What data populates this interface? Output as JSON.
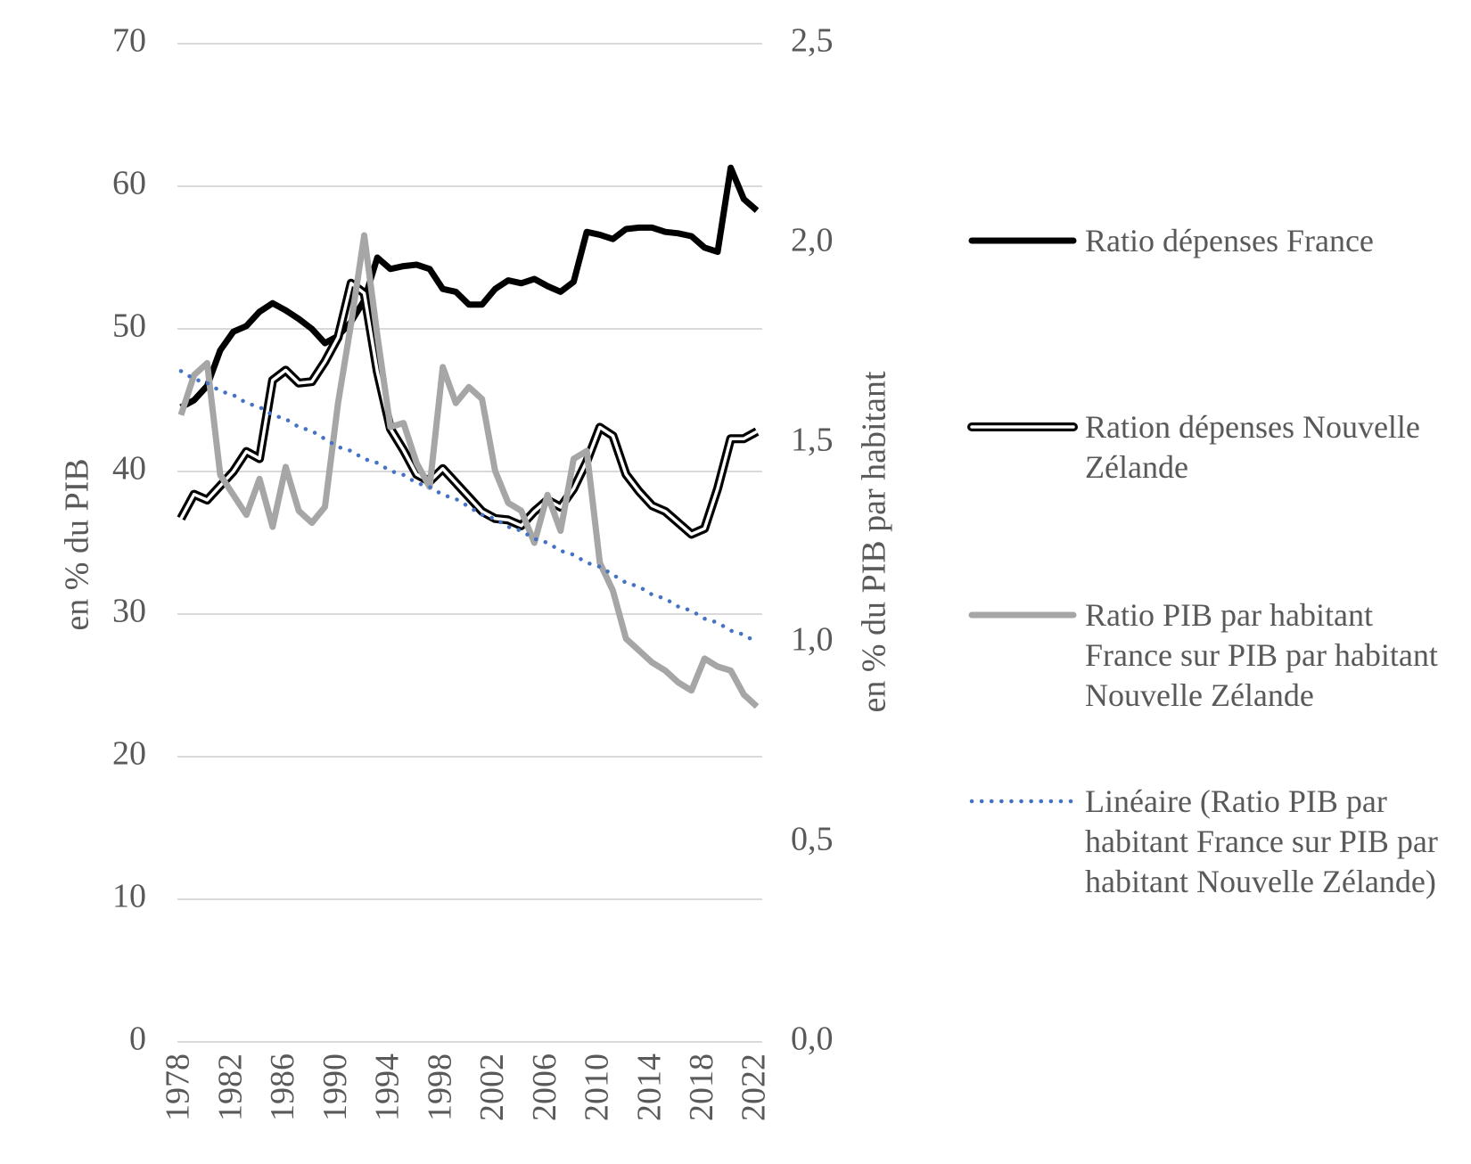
{
  "chart_data": {
    "type": "line",
    "y_label": "en % du PIB",
    "y2_label": "en % du PIB par habitant",
    "categories": [
      "1978",
      null,
      null,
      null,
      "1982",
      null,
      null,
      null,
      "1986",
      null,
      null,
      null,
      "1990",
      null,
      null,
      null,
      "1994",
      null,
      null,
      null,
      "1998",
      null,
      null,
      null,
      "2002",
      null,
      null,
      null,
      "2006",
      null,
      null,
      null,
      "2010",
      null,
      null,
      null,
      "2014",
      null,
      null,
      null,
      "2018",
      null,
      null,
      null,
      "2022"
    ],
    "ylim": [
      0,
      70
    ],
    "yticks": [
      0,
      10,
      20,
      30,
      40,
      50,
      60,
      70
    ],
    "y2lim": [
      0,
      2.5
    ],
    "y2ticks": [
      {
        "value": 0,
        "label": "0,0"
      },
      {
        "value": 0.5,
        "label": "0,5"
      },
      {
        "value": 1,
        "label": "1,0"
      },
      {
        "value": 1.5,
        "label": "1,5"
      },
      {
        "value": 2,
        "label": "2,0"
      },
      {
        "value": 2.5,
        "label": "2,5"
      }
    ],
    "grid": true,
    "legend": "right",
    "series": [
      {
        "name": "Ratio dépenses France",
        "color": "#000000",
        "line_style": "solid",
        "values": [
          44.5,
          45,
          46,
          48.5,
          49.8,
          50.2,
          51.2,
          51.8,
          51.3,
          50.7,
          50,
          49,
          49.5,
          50.5,
          52,
          55,
          54.2,
          54.4,
          54.5,
          54.2,
          52.8,
          52.6,
          51.7,
          51.7,
          52.8,
          53.4,
          53.2,
          53.5,
          53,
          52.6,
          53.3,
          56.8,
          56.6,
          56.3,
          57,
          57.1,
          57.1,
          56.8,
          56.7,
          56.5,
          55.7,
          55.4,
          61.3,
          59.1,
          58.3
        ]
      },
      {
        "name": "Ration dépenses Nouvelle Zélande",
        "color": "#000000",
        "line_style": "double",
        "values": [
          36.7,
          38.4,
          38,
          39,
          40,
          41.4,
          40.9,
          46.4,
          47.1,
          46.2,
          46.3,
          47.7,
          49.4,
          53.2,
          52.5,
          47,
          43,
          41.5,
          39.8,
          39.3,
          40.2,
          39.2,
          38.2,
          37.2,
          36.7,
          36.6,
          36.2,
          37.2,
          38,
          37.5,
          38.8,
          40.7,
          43.1,
          42.5,
          39.8,
          38.6,
          37.6,
          37.2,
          36.4,
          35.6,
          36,
          38.8,
          42.3,
          42.3,
          42.8
        ]
      },
      {
        "name": "Ratio PIB par habitant France sur PIB par habitant Nouvelle Zélande",
        "color": "#a6a6a6",
        "line_style": "solid",
        "axis": "y2",
        "values": [
          1.57,
          1.67,
          1.7,
          1.42,
          1.37,
          1.32,
          1.41,
          1.29,
          1.44,
          1.33,
          1.3,
          1.34,
          1.6,
          1.8,
          2.02,
          1.77,
          1.54,
          1.55,
          1.45,
          1.39,
          1.69,
          1.6,
          1.64,
          1.61,
          1.43,
          1.35,
          1.33,
          1.25,
          1.37,
          1.28,
          1.46,
          1.48,
          1.2,
          1.13,
          1.01,
          0.98,
          0.95,
          0.93,
          0.9,
          0.88,
          0.96,
          0.94,
          0.93,
          0.87,
          0.84
        ]
      },
      {
        "name": "Linéaire (Ratio PIB par habitant France sur PIB par habitant Nouvelle Zélande)",
        "color": "#4472c4",
        "line_style": "dotted",
        "axis": "y2",
        "values": [
          1.68,
          1.66,
          1.65,
          1.63,
          1.62,
          1.6,
          1.59,
          1.57,
          1.56,
          1.54,
          1.53,
          1.51,
          1.49,
          1.48,
          1.46,
          1.45,
          1.43,
          1.42,
          1.4,
          1.39,
          1.37,
          1.36,
          1.34,
          1.32,
          1.31,
          1.29,
          1.28,
          1.26,
          1.25,
          1.23,
          1.22,
          1.2,
          1.19,
          1.17,
          1.15,
          1.14,
          1.12,
          1.11,
          1.09,
          1.08,
          1.06,
          1.05,
          1.03,
          1.02,
          1.0
        ]
      }
    ]
  }
}
